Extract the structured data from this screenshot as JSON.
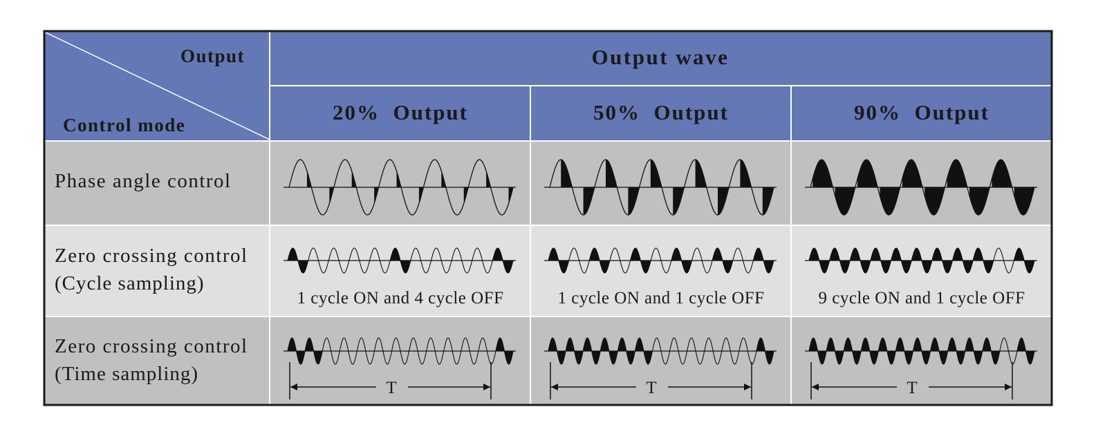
{
  "colors": {
    "header_bg": "#6378b4",
    "row_dark": "#c0c0c0",
    "row_light": "#e0e0e0",
    "border": "#1a1a1a",
    "grid_line": "#ffffff",
    "wave": "#111111"
  },
  "header": {
    "corner_top": "Output",
    "corner_bottom": "Control mode",
    "group_title": "Output wave",
    "columns": [
      "20%  Output",
      "50%  Output",
      "90%  Output"
    ]
  },
  "rows": [
    {
      "label_lines": [
        "Phase angle control"
      ],
      "kind": "phase",
      "fill_fractions": [
        0.2,
        0.5,
        0.9
      ]
    },
    {
      "label_lines": [
        "Zero crossing control",
        "(Cycle sampling)"
      ],
      "kind": "cycle",
      "patterns": [
        [
          1,
          0,
          0,
          0,
          0,
          1,
          0,
          0,
          0,
          0,
          1
        ],
        [
          1,
          0,
          1,
          0,
          1,
          0,
          1,
          0,
          1,
          0,
          1
        ],
        [
          1,
          1,
          1,
          1,
          1,
          1,
          1,
          1,
          1,
          0,
          1
        ]
      ],
      "captions": [
        "1 cycle ON and 4 cycle OFF",
        "1 cycle ON and 1 cycle OFF",
        "9 cycle ON and 1 cycle OFF"
      ]
    },
    {
      "label_lines": [
        "Zero crossing control",
        "(Time sampling)"
      ],
      "kind": "time",
      "patterns": [
        [
          1,
          1,
          0,
          0,
          0,
          0,
          0,
          0,
          0,
          0,
          0,
          0,
          1
        ],
        [
          1,
          1,
          1,
          1,
          1,
          1,
          0,
          0,
          0,
          0,
          0,
          0,
          1
        ],
        [
          1,
          1,
          1,
          1,
          1,
          1,
          1,
          1,
          1,
          1,
          1,
          0,
          1
        ]
      ],
      "period_label": "T"
    }
  ]
}
